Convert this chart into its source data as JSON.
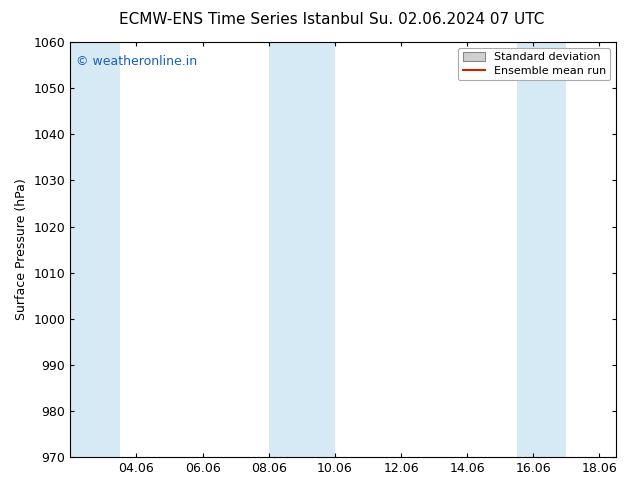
{
  "title_left": "ECMW-ENS Time Series Istanbul",
  "title_right": "Su. 02.06.2024 07 UTC",
  "ylabel": "Surface Pressure (hPa)",
  "ylim": [
    970,
    1060
  ],
  "yticks": [
    970,
    980,
    990,
    1000,
    1010,
    1020,
    1030,
    1040,
    1050,
    1060
  ],
  "xlim_start": 2.0,
  "xlim_end": 18.5,
  "xtick_labels": [
    "04.06",
    "06.06",
    "08.06",
    "10.06",
    "12.06",
    "14.06",
    "16.06",
    "18.06"
  ],
  "xtick_positions": [
    4.0,
    6.0,
    8.0,
    10.0,
    12.0,
    14.0,
    16.0,
    18.0
  ],
  "shaded_bands": [
    {
      "x_start": 2.0,
      "x_end": 3.5
    },
    {
      "x_start": 8.0,
      "x_end": 10.0
    },
    {
      "x_start": 15.5,
      "x_end": 17.0
    }
  ],
  "band_color": "#d6eaf5",
  "background_color": "#ffffff",
  "watermark_text": "© weatheronline.in",
  "watermark_color": "#1a5ec0",
  "legend_std_dev_label": "Standard deviation",
  "legend_std_dev_facecolor": "#d0d0d0",
  "legend_std_dev_edgecolor": "#888888",
  "legend_mean_label": "Ensemble mean run",
  "legend_mean_color": "#cc2200",
  "title_fontsize": 11,
  "ylabel_fontsize": 9,
  "tick_fontsize": 9,
  "watermark_fontsize": 9,
  "legend_fontsize": 8
}
